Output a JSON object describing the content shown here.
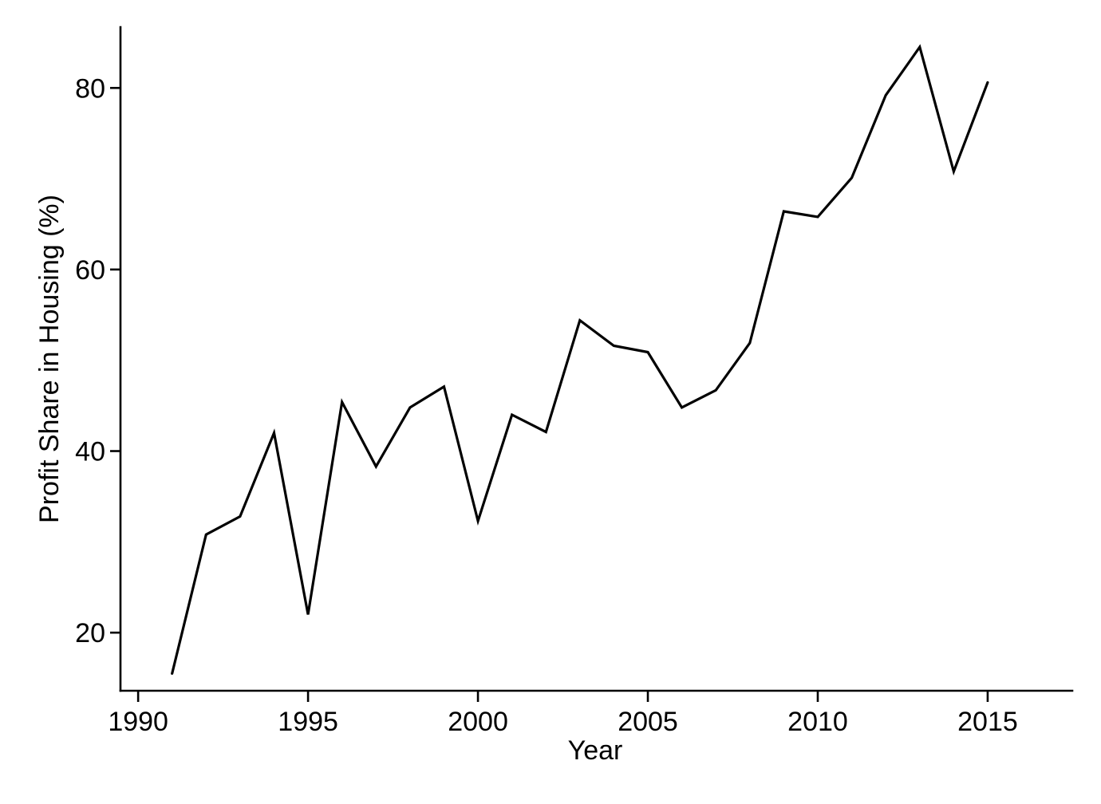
{
  "chart_data": {
    "type": "line",
    "title": "",
    "xlabel": "Year",
    "ylabel": "Profit Share in Housing (%)",
    "x": [
      1991,
      1992,
      1993,
      1994,
      1995,
      1996,
      1997,
      1998,
      1999,
      2000,
      2001,
      2002,
      2003,
      2004,
      2005,
      2006,
      2007,
      2008,
      2009,
      2010,
      2011,
      2012,
      2013,
      2014,
      2015
    ],
    "y": [
      15.5,
      30.8,
      32.8,
      42.0,
      22.0,
      45.4,
      38.3,
      44.8,
      47.1,
      32.3,
      44.0,
      42.1,
      54.4,
      51.6,
      50.9,
      44.8,
      46.7,
      51.9,
      66.4,
      65.8,
      70.1,
      79.2,
      84.5,
      70.8,
      80.6
    ],
    "xticks": [
      1990,
      1995,
      2000,
      2005,
      2010,
      2015
    ],
    "yticks": [
      20,
      40,
      60,
      80
    ],
    "xlim": [
      1989.48,
      2017.49
    ],
    "ylim": [
      13.6,
      86.7
    ],
    "grid": false,
    "legend": null,
    "line_color": "#000000",
    "axis_color": "#000000",
    "background_color": "#ffffff"
  }
}
